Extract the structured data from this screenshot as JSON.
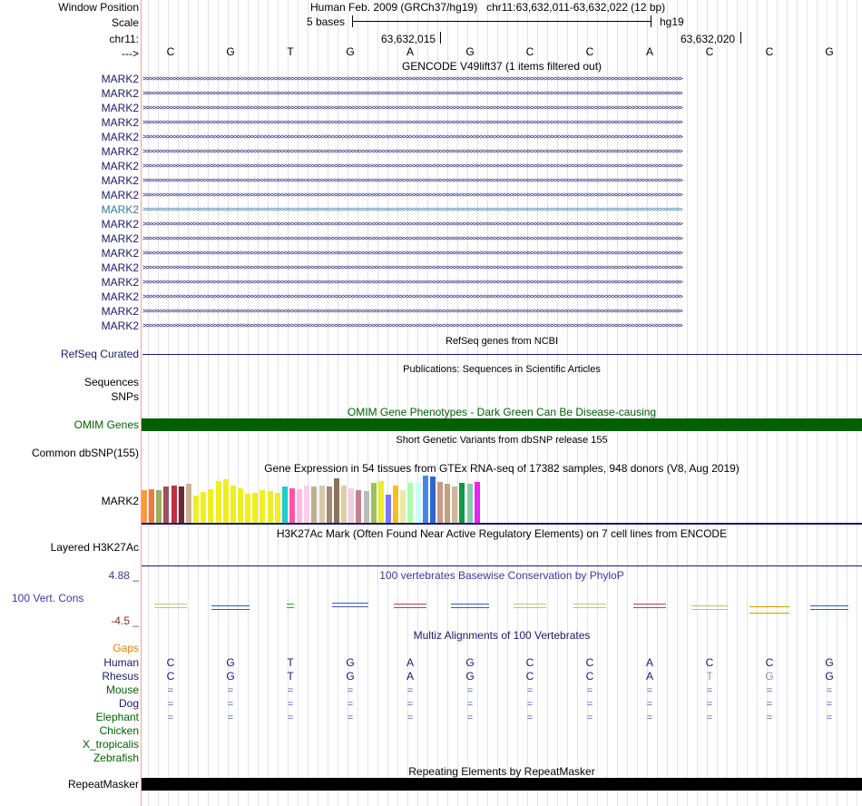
{
  "header": {
    "window_position_label": "Window Position",
    "assembly": "Human Feb. 2009 (GRCh37/hg19)",
    "position": "chr11:63,632,011-63,632,022 (12 bp)",
    "scale_label": "Scale",
    "scale_text": "5 bases",
    "scale_assembly": "hg19",
    "chrom_label": "chr11:",
    "coord1": "63,632,015",
    "coord2": "63,632,020",
    "strand_label": "--->"
  },
  "sequence": [
    "C",
    "G",
    "T",
    "G",
    "A",
    "G",
    "C",
    "C",
    "A",
    "C",
    "C",
    "G"
  ],
  "gencode": {
    "title": "GENCODE V49lift37 (1 items filtered out)",
    "transcripts": [
      "MARK2",
      "MARK2",
      "MARK2",
      "MARK2",
      "MARK2",
      "MARK2",
      "MARK2",
      "MARK2",
      "MARK2",
      "MARK2",
      "MARK2",
      "MARK2",
      "MARK2",
      "MARK2",
      "MARK2",
      "MARK2",
      "MARK2",
      "MARK2"
    ],
    "highlight_color": "#2a7a9a",
    "gene_color": "#1a1a6a"
  },
  "tracks": {
    "refseq_label": "RefSeq Curated",
    "refseq_title": "RefSeq genes from NCBI",
    "pubs_title": "Publications: Sequences in Scientific Articles",
    "sequences_label": "Sequences",
    "snps_label": "SNPs",
    "omim_title": "OMIM Gene Phenotypes - Dark Green Can Be Disease-causing",
    "omim_label": "OMIM Genes",
    "omim_color": "#006000",
    "dbsnp_title": "Short Genetic Variants from dbSNP release 155",
    "dbsnp_label": "Common dbSNP(155)",
    "gtex_title": "Gene Expression in 54 tissues from GTEx RNA-seq of 17382 samples, 948 donors (V8, Aug 2019)",
    "gtex_label": "MARK2",
    "h3k27_title": "H3K27Ac Mark (Often Found Near Active Regulatory Elements) on 7 cell lines from ENCODE",
    "h3k27_label": "Layered H3K27Ac",
    "cons_title": "100 vertebrates Basewise Conservation by PhyloP",
    "cons_label": "100 Vert. Cons",
    "cons_max": "4.88 _",
    "cons_min": "-4.5 _",
    "multiz_title": "Multiz Alignments of 100 Vertebrates",
    "rmsk_title": "Repeating Elements by RepeatMasker",
    "rmsk_label": "RepeatMasker"
  },
  "gtex_bars": [
    {
      "v": 0.7,
      "c": "#ff9a3c"
    },
    {
      "v": 0.72,
      "c": "#f07a3a"
    },
    {
      "v": 0.7,
      "c": "#99b060"
    },
    {
      "v": 0.76,
      "c": "#a05060"
    },
    {
      "v": 0.78,
      "c": "#c03040"
    },
    {
      "v": 0.76,
      "c": "#702838"
    },
    {
      "v": 0.82,
      "c": "#d0b090"
    },
    {
      "v": 0.58,
      "c": "#eeee22"
    },
    {
      "v": 0.66,
      "c": "#eeee22"
    },
    {
      "v": 0.72,
      "c": "#eeee22"
    },
    {
      "v": 0.88,
      "c": "#eeee22"
    },
    {
      "v": 0.92,
      "c": "#eeee22"
    },
    {
      "v": 0.78,
      "c": "#eeee22"
    },
    {
      "v": 0.74,
      "c": "#eeee22"
    },
    {
      "v": 0.62,
      "c": "#eeee22"
    },
    {
      "v": 0.64,
      "c": "#eeee22"
    },
    {
      "v": 0.7,
      "c": "#eeee22"
    },
    {
      "v": 0.68,
      "c": "#eeee22"
    },
    {
      "v": 0.64,
      "c": "#eeee22"
    },
    {
      "v": 0.76,
      "c": "#22cccc"
    },
    {
      "v": 0.74,
      "c": "#ff55aa"
    },
    {
      "v": 0.72,
      "c": "#ffbbdd"
    },
    {
      "v": 0.78,
      "c": "#ffccee"
    },
    {
      "v": 0.76,
      "c": "#c0b090"
    },
    {
      "v": 0.78,
      "c": "#d8c8a8"
    },
    {
      "v": 0.76,
      "c": "#a08870"
    },
    {
      "v": 0.94,
      "c": "#8a7358"
    },
    {
      "v": 0.78,
      "c": "#ddccaa"
    },
    {
      "v": 0.74,
      "c": "#f0d0e0"
    },
    {
      "v": 0.7,
      "c": "#c88090"
    },
    {
      "v": 0.68,
      "c": "#bbbbbb"
    },
    {
      "v": 0.84,
      "c": "#a0c060"
    },
    {
      "v": 0.88,
      "c": "#eeee22"
    },
    {
      "v": 0.6,
      "c": "#7777ff"
    },
    {
      "v": 0.78,
      "c": "#ffbb22"
    },
    {
      "v": 0.7,
      "c": "#e8e8a8"
    },
    {
      "v": 0.84,
      "c": "#aaffaa"
    },
    {
      "v": 0.86,
      "c": "#ccffff"
    },
    {
      "v": 1.0,
      "c": "#4488ee"
    },
    {
      "v": 0.98,
      "c": "#3366cc"
    },
    {
      "v": 0.86,
      "c": "#cc9988"
    },
    {
      "v": 0.82,
      "c": "#c0a080"
    },
    {
      "v": 0.76,
      "c": "#d0b898"
    },
    {
      "v": 0.84,
      "c": "#119944"
    },
    {
      "v": 0.82,
      "c": "#88ccaa"
    },
    {
      "v": 0.86,
      "c": "#ee22ee"
    }
  ],
  "multiz": {
    "gaps_label": "Gaps",
    "gaps_color": "#e08000",
    "species": [
      {
        "name": "Human",
        "color": "#1a1a6a",
        "row": [
          "C",
          "G",
          "T",
          "G",
          "A",
          "G",
          "C",
          "C",
          "A",
          "C",
          "C",
          "G"
        ],
        "kind": "seq"
      },
      {
        "name": "Rhesus",
        "color": "#1a1a6a",
        "row": [
          "C",
          "G",
          "T",
          "G",
          "A",
          "G",
          "C",
          "C",
          "A",
          "T",
          "G",
          "G"
        ],
        "kind": "seq"
      },
      {
        "name": "Mouse",
        "color": "#006000",
        "row": [
          "=",
          "=",
          "=",
          "=",
          "=",
          "=",
          "=",
          "=",
          "=",
          "=",
          "=",
          "="
        ],
        "kind": "eq"
      },
      {
        "name": "Dog",
        "color": "#1a1a6a",
        "row": [
          "=",
          "=",
          "=",
          "=",
          "=",
          "=",
          "=",
          "=",
          "=",
          "=",
          "=",
          "="
        ],
        "kind": "eq"
      },
      {
        "name": "Elephant",
        "color": "#006000",
        "row": [
          "=",
          "=",
          "=",
          "=",
          "=",
          "=",
          "=",
          "=",
          "=",
          "=",
          "=",
          "="
        ],
        "kind": "eq"
      },
      {
        "name": "Chicken",
        "color": "#006000",
        "row": [],
        "kind": "eq"
      },
      {
        "name": "X_tropicalis",
        "color": "#006000",
        "row": [],
        "kind": "eq"
      },
      {
        "name": "Zebrafish",
        "color": "#006000",
        "row": [],
        "kind": "eq"
      }
    ]
  }
}
